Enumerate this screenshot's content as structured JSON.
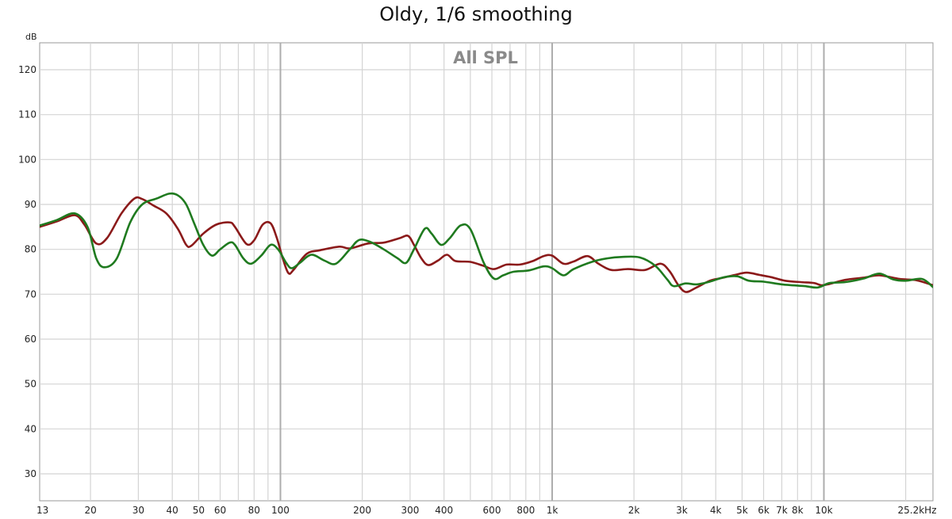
{
  "chart_data": {
    "type": "line",
    "title": "Oldy, 1/6 smoothing",
    "panel_label": "All SPL",
    "y_unit": "dB",
    "x_scale": "log",
    "xlim": [
      13,
      25200
    ],
    "ylim": [
      24,
      126
    ],
    "x_ticks": [
      {
        "value": 13,
        "label": "13"
      },
      {
        "value": 20,
        "label": "20"
      },
      {
        "value": 30,
        "label": "30"
      },
      {
        "value": 40,
        "label": "40"
      },
      {
        "value": 50,
        "label": "50"
      },
      {
        "value": 60,
        "label": "60"
      },
      {
        "value": 80,
        "label": "80"
      },
      {
        "value": 100,
        "label": "100"
      },
      {
        "value": 200,
        "label": "200"
      },
      {
        "value": 300,
        "label": "300"
      },
      {
        "value": 400,
        "label": "400"
      },
      {
        "value": 600,
        "label": "600"
      },
      {
        "value": 800,
        "label": "800"
      },
      {
        "value": 1000,
        "label": "1k"
      },
      {
        "value": 2000,
        "label": "2k"
      },
      {
        "value": 3000,
        "label": "3k"
      },
      {
        "value": 4000,
        "label": "4k"
      },
      {
        "value": 5000,
        "label": "5k"
      },
      {
        "value": 6000,
        "label": "6k"
      },
      {
        "value": 7000,
        "label": "7k"
      },
      {
        "value": 8000,
        "label": "8k"
      },
      {
        "value": 10000,
        "label": "10k"
      },
      {
        "value": 25200,
        "label": "25.2kHz"
      }
    ],
    "y_ticks": [
      {
        "value": 120,
        "label": "120"
      },
      {
        "value": 110,
        "label": "110"
      },
      {
        "value": 100,
        "label": "100"
      },
      {
        "value": 90,
        "label": "90"
      },
      {
        "value": 80,
        "label": "80"
      },
      {
        "value": 70,
        "label": "70"
      },
      {
        "value": 60,
        "label": "60"
      },
      {
        "value": 50,
        "label": "50"
      },
      {
        "value": 40,
        "label": "40"
      },
      {
        "value": 30,
        "label": "30"
      }
    ],
    "grid": true,
    "series": [
      {
        "color": "#8b1a1a",
        "points": [
          [
            13,
            85
          ],
          [
            15,
            86.2
          ],
          [
            17.5,
            87.6
          ],
          [
            19,
            85.5
          ],
          [
            21,
            81.3
          ],
          [
            23,
            82.5
          ],
          [
            26,
            88
          ],
          [
            29,
            91.3
          ],
          [
            31,
            91.2
          ],
          [
            34,
            89.8
          ],
          [
            38,
            88
          ],
          [
            42,
            84.5
          ],
          [
            45,
            81
          ],
          [
            47,
            80.8
          ],
          [
            52,
            83.5
          ],
          [
            58,
            85.5
          ],
          [
            65,
            86
          ],
          [
            68,
            85
          ],
          [
            75,
            81.2
          ],
          [
            80,
            82
          ],
          [
            86,
            85.5
          ],
          [
            92,
            85.8
          ],
          [
            97,
            82.5
          ],
          [
            102,
            78
          ],
          [
            107,
            74.7
          ],
          [
            112,
            75.5
          ],
          [
            125,
            79
          ],
          [
            140,
            79.8
          ],
          [
            165,
            80.6
          ],
          [
            180,
            80.2
          ],
          [
            210,
            81.3
          ],
          [
            240,
            81.5
          ],
          [
            275,
            82.5
          ],
          [
            295,
            83
          ],
          [
            310,
            81
          ],
          [
            330,
            78
          ],
          [
            350,
            76.5
          ],
          [
            380,
            77.5
          ],
          [
            410,
            78.8
          ],
          [
            440,
            77.4
          ],
          [
            500,
            77.2
          ],
          [
            560,
            76.3
          ],
          [
            610,
            75.6
          ],
          [
            680,
            76.6
          ],
          [
            760,
            76.6
          ],
          [
            850,
            77.4
          ],
          [
            930,
            78.5
          ],
          [
            1000,
            78.6
          ],
          [
            1100,
            76.8
          ],
          [
            1200,
            77.3
          ],
          [
            1350,
            78.5
          ],
          [
            1480,
            76.8
          ],
          [
            1650,
            75.4
          ],
          [
            1900,
            75.6
          ],
          [
            2200,
            75.4
          ],
          [
            2500,
            76.8
          ],
          [
            2700,
            75.2
          ],
          [
            2900,
            72.2
          ],
          [
            3100,
            70.5
          ],
          [
            3400,
            71.5
          ],
          [
            3800,
            73
          ],
          [
            4200,
            73.6
          ],
          [
            4700,
            74.3
          ],
          [
            5200,
            74.8
          ],
          [
            5800,
            74.3
          ],
          [
            6400,
            73.8
          ],
          [
            7200,
            73
          ],
          [
            8200,
            72.7
          ],
          [
            9200,
            72.5
          ],
          [
            9800,
            72
          ],
          [
            10500,
            72.3
          ],
          [
            12000,
            73.2
          ],
          [
            14000,
            73.7
          ],
          [
            16000,
            74.2
          ],
          [
            19000,
            73.4
          ],
          [
            22000,
            73.1
          ],
          [
            25200,
            72
          ]
        ]
      },
      {
        "color": "#1f7a1f",
        "points": [
          [
            13,
            85.3
          ],
          [
            15,
            86.5
          ],
          [
            17.5,
            88
          ],
          [
            19.5,
            85
          ],
          [
            21,
            78
          ],
          [
            22.5,
            76
          ],
          [
            25,
            78
          ],
          [
            28,
            86
          ],
          [
            31,
            90
          ],
          [
            35,
            91.3
          ],
          [
            39,
            92.4
          ],
          [
            42,
            92
          ],
          [
            45,
            90
          ],
          [
            48,
            86
          ],
          [
            52,
            81
          ],
          [
            56,
            78.6
          ],
          [
            60,
            80
          ],
          [
            65,
            81.5
          ],
          [
            68,
            81
          ],
          [
            73,
            78
          ],
          [
            78,
            76.8
          ],
          [
            85,
            78.6
          ],
          [
            92,
            81
          ],
          [
            98,
            80
          ],
          [
            105,
            77
          ],
          [
            110,
            75.8
          ],
          [
            118,
            77
          ],
          [
            130,
            78.8
          ],
          [
            145,
            77.5
          ],
          [
            160,
            76.8
          ],
          [
            180,
            80
          ],
          [
            195,
            82.1
          ],
          [
            215,
            81.6
          ],
          [
            240,
            80
          ],
          [
            270,
            78
          ],
          [
            290,
            77
          ],
          [
            310,
            80
          ],
          [
            340,
            84.6
          ],
          [
            360,
            83.5
          ],
          [
            390,
            81
          ],
          [
            420,
            82.5
          ],
          [
            460,
            85.3
          ],
          [
            500,
            84.5
          ],
          [
            560,
            77
          ],
          [
            610,
            73.5
          ],
          [
            660,
            74.2
          ],
          [
            720,
            75
          ],
          [
            820,
            75.3
          ],
          [
            930,
            76.2
          ],
          [
            1000,
            75.8
          ],
          [
            1100,
            74.2
          ],
          [
            1200,
            75.6
          ],
          [
            1400,
            77.2
          ],
          [
            1600,
            78
          ],
          [
            1800,
            78.3
          ],
          [
            2100,
            78.2
          ],
          [
            2400,
            76.3
          ],
          [
            2650,
            73.3
          ],
          [
            2800,
            71.8
          ],
          [
            3100,
            72.4
          ],
          [
            3400,
            72.2
          ],
          [
            3800,
            72.8
          ],
          [
            4300,
            73.8
          ],
          [
            4800,
            74
          ],
          [
            5300,
            73
          ],
          [
            6000,
            72.8
          ],
          [
            7000,
            72.2
          ],
          [
            8500,
            71.8
          ],
          [
            9500,
            71.5
          ],
          [
            10500,
            72.5
          ],
          [
            12000,
            72.7
          ],
          [
            14000,
            73.5
          ],
          [
            16000,
            74.6
          ],
          [
            18000,
            73.3
          ],
          [
            20000,
            73
          ],
          [
            23000,
            73.4
          ],
          [
            25200,
            71.6
          ]
        ]
      }
    ]
  }
}
